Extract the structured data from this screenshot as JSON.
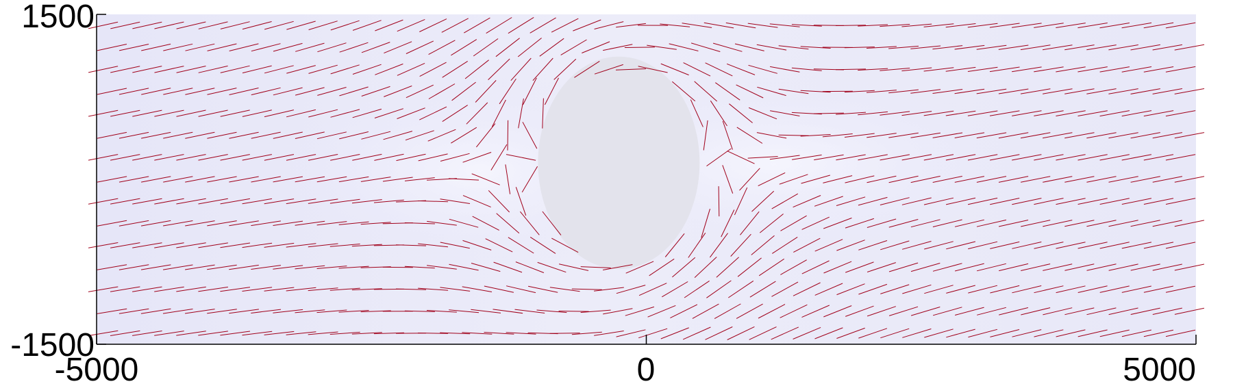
{
  "chart_data": {
    "type": "quiver",
    "title": "",
    "xlabel": "",
    "ylabel": "",
    "xlim": [
      -5000,
      5000
    ],
    "ylim": [
      -1500,
      1500
    ],
    "x_ticks": [
      -5000,
      0,
      5000
    ],
    "y_ticks": [
      -1500,
      1500
    ],
    "x_tick_labels": [
      "-5000",
      "0",
      "5000"
    ],
    "y_tick_labels": [
      "1500",
      "-1500"
    ],
    "grid": false,
    "legend": "none",
    "field": {
      "description": "direction-field line segments of flow around a circular obstacle with a uniform background tilt",
      "grid_nx": 50,
      "grid_ny": 15,
      "obstacle_center": [
        -250,
        150
      ],
      "obstacle_radius": 1050,
      "background_slope_deg": 11
    },
    "background": {
      "colormap": "pale lavender",
      "value_near_obstacle": "lighter/grey",
      "value_far": "lavender"
    },
    "colors": {
      "segment": "#a0001a",
      "background": "#e7e7f7",
      "obstacle": "#e2e2ea",
      "axis": "#000000"
    }
  }
}
